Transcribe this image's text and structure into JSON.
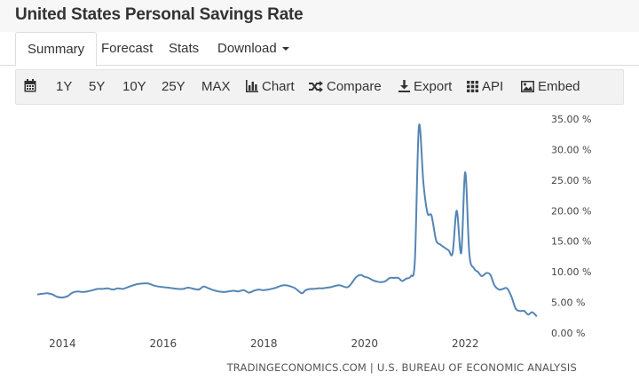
{
  "page": {
    "title": "United States Personal Savings Rate"
  },
  "tabs": [
    {
      "label": "Summary",
      "active": true
    },
    {
      "label": "Forecast",
      "active": false
    },
    {
      "label": "Stats",
      "active": false
    },
    {
      "label": "Download",
      "active": false
    }
  ],
  "toolbar": {
    "ranges": [
      "1Y",
      "5Y",
      "10Y",
      "25Y",
      "MAX"
    ],
    "chart_label": "Chart",
    "compare_label": "Compare",
    "export_label": "Export",
    "api_label": "API",
    "embed_label": "Embed"
  },
  "colors": {
    "line": "#5585b5",
    "accent": "#333333"
  },
  "chart_data": {
    "type": "line",
    "source": "TRADINGECONOMICS.COM | U.S. BUREAU OF ECONOMIC ANALYSIS",
    "y_unit": "%",
    "ylim": [
      0,
      35
    ],
    "yticks": [
      "0.00 %",
      "5.00 %",
      "10.00 %",
      "15.00 %",
      "20.00 %",
      "25.00 %",
      "30.00 %",
      "35.00 %"
    ],
    "ytick_values": [
      0,
      5,
      10,
      15,
      20,
      25,
      30,
      35
    ],
    "xlim": [
      2013.5,
      2023.6
    ],
    "xticks": [
      "2014",
      "2016",
      "2018",
      "2020",
      "2022"
    ],
    "xtick_values": [
      2014,
      2016,
      2018,
      2020,
      2022
    ],
    "grid": false,
    "series": [
      {
        "x": [
          2013.5,
          2013.6,
          2013.7,
          2013.8,
          2013.9,
          2014.0,
          2014.1,
          2014.2,
          2014.3,
          2014.4,
          2014.5,
          2014.6,
          2014.7,
          2014.8,
          2014.9,
          2015.0,
          2015.1,
          2015.2,
          2015.3,
          2015.5,
          2015.7,
          2015.8,
          2015.9,
          2016.0,
          2016.1,
          2016.2,
          2016.3,
          2016.4,
          2016.5,
          2016.7,
          2016.8,
          2016.9,
          2017.0,
          2017.1,
          2017.2,
          2017.3,
          2017.4,
          2017.5,
          2017.6,
          2017.7,
          2017.8,
          2017.9,
          2018.0,
          2018.2,
          2018.4,
          2018.6,
          2018.75,
          2018.83,
          2018.92,
          2019.0,
          2019.08,
          2019.17,
          2019.25,
          2019.33,
          2019.5,
          2019.67,
          2019.83,
          2019.92,
          2020.0,
          2020.08,
          2020.17,
          2020.25,
          2020.33,
          2020.42,
          2020.5,
          2020.58,
          2020.67,
          2020.75,
          2020.83,
          2020.92,
          2021.0,
          2021.08,
          2021.17,
          2021.25,
          2021.33,
          2021.42,
          2021.5,
          2021.58,
          2021.67,
          2021.75,
          2021.83,
          2021.92,
          2022.0,
          2022.08,
          2022.17,
          2022.25,
          2022.33,
          2022.42,
          2022.5,
          2022.58,
          2022.67,
          2022.75,
          2022.83,
          2022.92,
          2023.0,
          2023.08,
          2023.17,
          2023.25,
          2023.33,
          2023.42
        ],
        "values": [
          6.3,
          6.4,
          6.5,
          6.3,
          5.9,
          5.8,
          6.0,
          6.6,
          6.8,
          6.7,
          6.8,
          7.0,
          7.2,
          7.2,
          7.3,
          7.1,
          7.3,
          7.2,
          7.5,
          8.0,
          8.1,
          7.8,
          7.6,
          7.5,
          7.4,
          7.3,
          7.2,
          7.2,
          7.4,
          7.1,
          7.6,
          7.3,
          7.0,
          6.8,
          6.7,
          6.8,
          6.9,
          6.8,
          7.0,
          6.6,
          6.9,
          7.1,
          7.0,
          7.3,
          7.8,
          7.4,
          6.5,
          7.0,
          7.2,
          7.2,
          7.3,
          7.3,
          7.4,
          7.5,
          7.8,
          7.5,
          9.1,
          9.5,
          9.2,
          9.0,
          8.6,
          8.4,
          8.3,
          8.5,
          9.0,
          9.0,
          9.0,
          8.5,
          8.9,
          9.3,
          12.0,
          33.8,
          24.5,
          19.6,
          19.2,
          15.2,
          14.5,
          14.0,
          13.5,
          13.1,
          20.0,
          13.1,
          26.3,
          13.0,
          10.6,
          10.0,
          9.3,
          9.8,
          9.5,
          7.8,
          7.1,
          7.2,
          7.3,
          5.9,
          4.0,
          3.6,
          3.6,
          3.0,
          3.4,
          2.7
        ],
        "values_tail": []
      }
    ]
  }
}
